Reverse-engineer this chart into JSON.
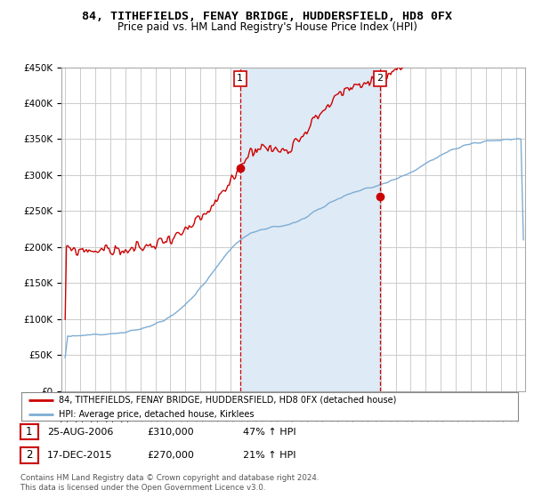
{
  "title": "84, TITHEFIELDS, FENAY BRIDGE, HUDDERSFIELD, HD8 0FX",
  "subtitle": "Price paid vs. HM Land Registry's House Price Index (HPI)",
  "legend_line1": "84, TITHEFIELDS, FENAY BRIDGE, HUDDERSFIELD, HD8 0FX (detached house)",
  "legend_line2": "HPI: Average price, detached house, Kirklees",
  "annotation1_date": "25-AUG-2006",
  "annotation1_price": "£310,000",
  "annotation1_hpi": "47% ↑ HPI",
  "annotation2_date": "17-DEC-2015",
  "annotation2_price": "£270,000",
  "annotation2_hpi": "21% ↑ HPI",
  "footer": "Contains HM Land Registry data © Crown copyright and database right 2024.\nThis data is licensed under the Open Government Licence v3.0.",
  "ylim": [
    0,
    450000
  ],
  "yticks": [
    0,
    50000,
    100000,
    150000,
    200000,
    250000,
    300000,
    350000,
    400000,
    450000
  ],
  "ytick_labels": [
    "£0",
    "£50K",
    "£100K",
    "£150K",
    "£200K",
    "£250K",
    "£300K",
    "£350K",
    "£400K",
    "£450K"
  ],
  "marker1_x": 2006.646,
  "marker1_y": 310000,
  "marker2_x": 2015.959,
  "marker2_y": 270000,
  "vline1_x": 2006.646,
  "vline2_x": 2015.959,
  "shade_start": 2006.646,
  "shade_end": 2015.959,
  "red_color": "#cc0000",
  "blue_color": "#7dadd4",
  "shade_color": "#deeaf5",
  "grid_color": "#cccccc",
  "background_color": "#ffffff",
  "xmin": 1994.75,
  "xmax": 2025.6
}
